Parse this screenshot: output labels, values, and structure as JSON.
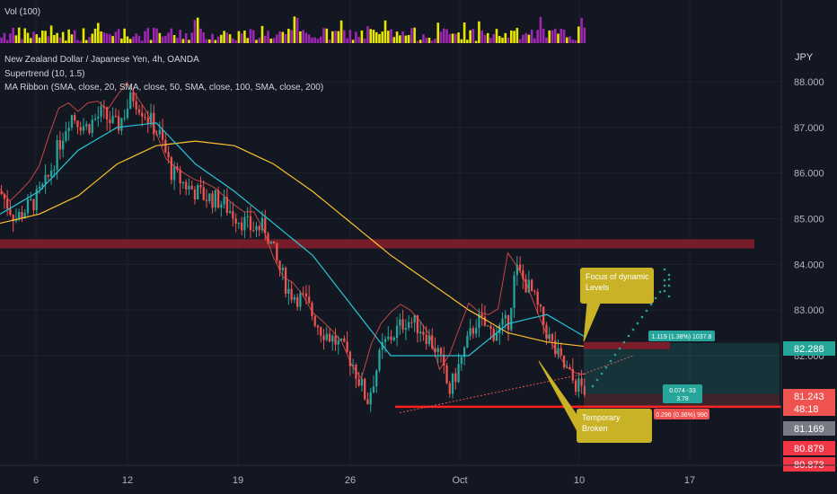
{
  "header": {
    "volume_label": "Vol (100)",
    "title": "New Zealand Dollar / Japanese Yen, 4h, OANDA",
    "indicator1": "Supertrend (10, 1.5)",
    "indicator2": "MA Ribbon (SMA, close, 20, SMA, close, 50, SMA, close, 100, SMA, close, 200)"
  },
  "price_axis": {
    "currency": "JPY",
    "ticks": [
      "88.000",
      "87.000",
      "86.000",
      "85.000",
      "84.000",
      "83.000",
      "82.000"
    ],
    "badges": [
      {
        "value": "82.288",
        "bg": "#26a69a",
        "fg": "#ffffff",
        "border": "#26a69a"
      },
      {
        "value": "81.243",
        "bg": "#ef5350",
        "fg": "#ffffff",
        "border": "#ef5350"
      },
      {
        "value": "48:18",
        "bg": "#ef5350",
        "fg": "#ffffff",
        "border": "#ef5350"
      },
      {
        "value": "81.169",
        "bg": "#787b86",
        "fg": "#ffffff",
        "border": "#787b86"
      },
      {
        "value": "80.879",
        "bg": "#f23645",
        "fg": "#ffffff",
        "border": "#f23645"
      },
      {
        "value": "80.873",
        "bg": "#f23645",
        "fg": "#ffffff",
        "border": "#f23645"
      }
    ]
  },
  "time_axis": {
    "ticks": [
      "6",
      "12",
      "19",
      "26",
      "Oct",
      "10",
      "17"
    ]
  },
  "annotations": {
    "callout1": "Focus of dynamic\nLevels",
    "callout2": "Temporary\nBroken",
    "profit_label": "1.119 (1.38%) 1037.8",
    "stop_label": "0.296 (0.36%) 990",
    "entry_label": "0.074 -33\n3.78"
  },
  "colors": {
    "background": "#131722",
    "bull": "#26a69a",
    "bear": "#ef5350",
    "vol_up": "#e6e600",
    "vol_down": "#9c27b0",
    "resistance_zone": "#7b1e2a",
    "support_line": "#ff1f1f",
    "ma_fast": "#26c6da",
    "ma_slow": "#fbc02d",
    "callout": "#c9b225"
  },
  "chart_data": {
    "type": "candlestick",
    "symbol": "NZDJPY",
    "timeframe": "4h",
    "y_range": [
      80.6,
      88.5
    ],
    "price_path": [
      [
        0,
        85.6
      ],
      [
        0.02,
        85.0
      ],
      [
        0.045,
        85.4
      ],
      [
        0.06,
        85.8
      ],
      [
        0.075,
        86.6
      ],
      [
        0.09,
        87.3
      ],
      [
        0.11,
        87.0
      ],
      [
        0.13,
        87.3
      ],
      [
        0.15,
        87.0
      ],
      [
        0.17,
        87.7
      ],
      [
        0.19,
        87.2
      ],
      [
        0.205,
        86.8
      ],
      [
        0.22,
        86.0
      ],
      [
        0.24,
        85.7
      ],
      [
        0.26,
        85.5
      ],
      [
        0.28,
        85.4
      ],
      [
        0.3,
        85.1
      ],
      [
        0.32,
        84.8
      ],
      [
        0.34,
        84.8
      ],
      [
        0.355,
        84.0
      ],
      [
        0.37,
        83.4
      ],
      [
        0.39,
        83.2
      ],
      [
        0.41,
        82.6
      ],
      [
        0.43,
        82.3
      ],
      [
        0.45,
        81.9
      ],
      [
        0.47,
        81.0
      ],
      [
        0.49,
        82.2
      ],
      [
        0.52,
        82.8
      ],
      [
        0.54,
        82.6
      ],
      [
        0.56,
        82.1
      ],
      [
        0.575,
        81.2
      ],
      [
        0.59,
        81.9
      ],
      [
        0.61,
        82.8
      ],
      [
        0.63,
        82.5
      ],
      [
        0.65,
        82.7
      ],
      [
        0.66,
        83.9
      ],
      [
        0.68,
        83.4
      ],
      [
        0.7,
        82.5
      ],
      [
        0.71,
        82.1
      ],
      [
        0.72,
        81.8
      ],
      [
        0.735,
        81.4
      ],
      [
        0.75,
        81.24
      ]
    ],
    "candle_count": 200,
    "volume_scale_max": 100,
    "ma_fast_path": [
      [
        0.0,
        85.1
      ],
      [
        0.05,
        85.6
      ],
      [
        0.1,
        86.5
      ],
      [
        0.15,
        87.0
      ],
      [
        0.2,
        87.1
      ],
      [
        0.25,
        86.2
      ],
      [
        0.3,
        85.6
      ],
      [
        0.35,
        84.9
      ],
      [
        0.4,
        84.2
      ],
      [
        0.45,
        83.1
      ],
      [
        0.5,
        82.0
      ],
      [
        0.55,
        82.0
      ],
      [
        0.6,
        82.0
      ],
      [
        0.65,
        82.7
      ],
      [
        0.7,
        82.9
      ],
      [
        0.75,
        82.4
      ]
    ],
    "ma_slow_path": [
      [
        0.0,
        84.9
      ],
      [
        0.05,
        85.1
      ],
      [
        0.1,
        85.5
      ],
      [
        0.15,
        86.2
      ],
      [
        0.2,
        86.6
      ],
      [
        0.25,
        86.7
      ],
      [
        0.3,
        86.6
      ],
      [
        0.35,
        86.2
      ],
      [
        0.4,
        85.6
      ],
      [
        0.45,
        84.9
      ],
      [
        0.5,
        84.2
      ],
      [
        0.55,
        83.6
      ],
      [
        0.6,
        83.0
      ],
      [
        0.65,
        82.5
      ],
      [
        0.7,
        82.3
      ],
      [
        0.75,
        82.2
      ]
    ],
    "resistance_zone": [
      84.35,
      84.55
    ],
    "support_level": 80.88,
    "long_position": {
      "entry": 81.16,
      "target": 82.28,
      "stop": 80.87
    }
  }
}
